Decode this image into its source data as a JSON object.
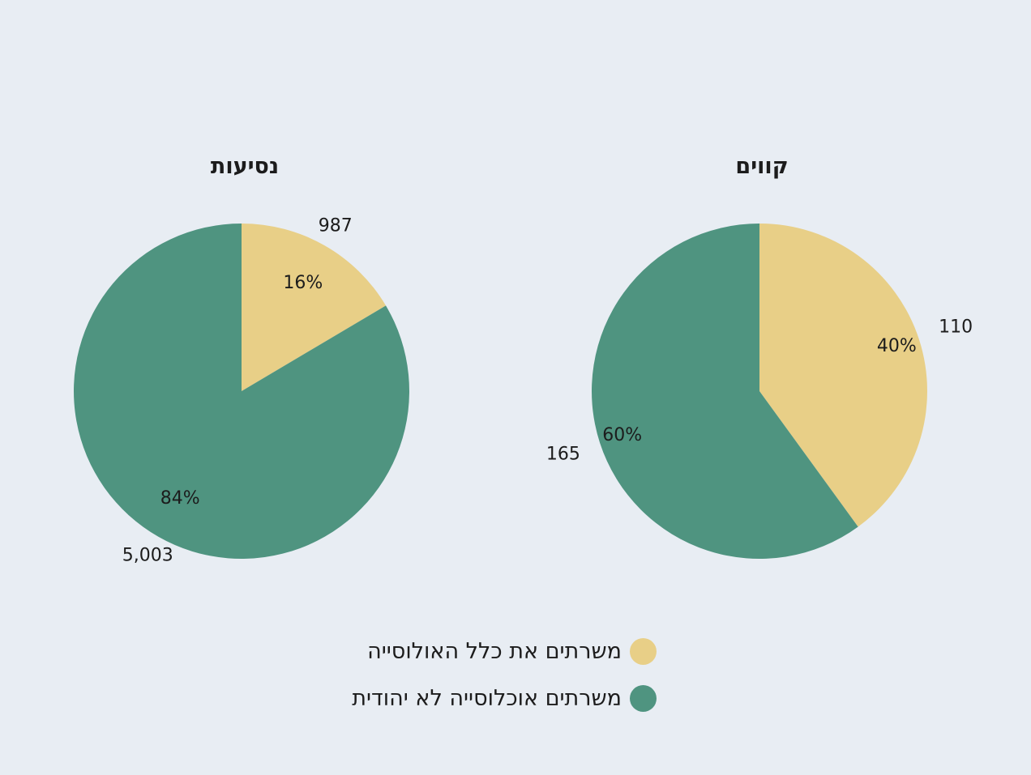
{
  "colors": {
    "general": "#e8cf87",
    "non_jewish": "#4f9480",
    "background": "#e8edf3"
  },
  "legend": [
    {
      "label": "משרתים את כלל האולוסייה",
      "color": "#e8cf87"
    },
    {
      "label": "משרתים אוכלוסייה לא יהודית",
      "color": "#4f9480"
    }
  ],
  "chart_data": [
    {
      "type": "pie",
      "title": "נסיעות",
      "slices": [
        {
          "series": "משרתים את כלל האולוסייה",
          "value": 987,
          "value_label": "987",
          "percent_label": "16%",
          "color": "#e8cf87"
        },
        {
          "series": "משרתים אוכלוסייה לא יהודית",
          "value": 5003,
          "value_label": "5,003",
          "percent_label": "84%",
          "color": "#4f9480"
        }
      ]
    },
    {
      "type": "pie",
      "title": "קווים",
      "slices": [
        {
          "series": "משרתים את כלל האולוסייה",
          "value": 110,
          "value_label": "110",
          "percent_label": "40%",
          "color": "#e8cf87"
        },
        {
          "series": "משרתים אוכלוסייה לא יהודית",
          "value": 165,
          "value_label": "165",
          "percent_label": "60%",
          "color": "#4f9480"
        }
      ]
    }
  ]
}
